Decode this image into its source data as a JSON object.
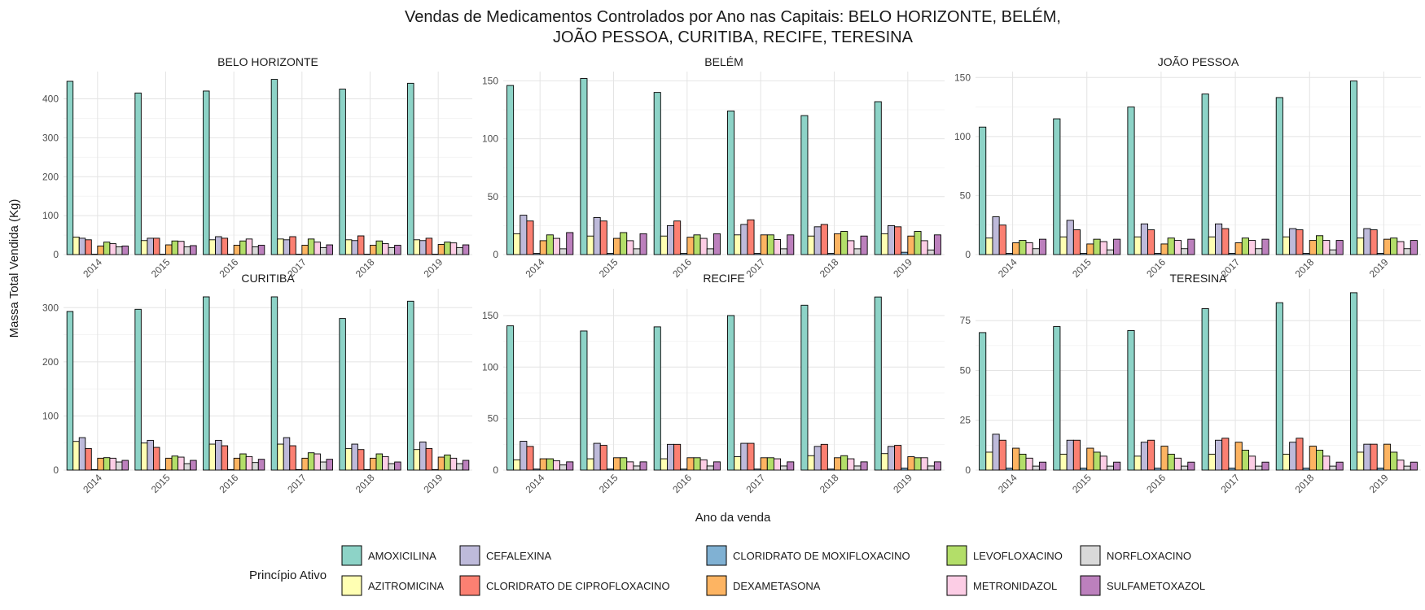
{
  "chart_data": {
    "type": "bar",
    "title": "Vendas de Medicamentos Controlados por Ano nas Capitais: BELO HORIZONTE, BELÉM, JOÃO PESSOA, CURITIBA, RECIFE, TERESINA",
    "title_lines": [
      "Vendas de Medicamentos Controlados por Ano nas Capitais: BELO HORIZONTE, BELÉM,",
      "JOÃO PESSOA, CURITIBA, RECIFE, TERESINA"
    ],
    "xlabel": "Ano da venda",
    "ylabel": "Massa Total Vendida (Kg)",
    "legend_title": "Princípio Ativo",
    "legend_position": "bottom",
    "grid": true,
    "categories": [
      "2014",
      "2015",
      "2016",
      "2017",
      "2018",
      "2019"
    ],
    "series_names": [
      "AMOXICILINA",
      "AZITROMICINA",
      "CEFALEXINA",
      "CLORIDRATO DE CIPROFLOXACINO",
      "CLORIDRATO DE MOXIFLOXACINO",
      "DEXAMETASONA",
      "LEVOFLOXACINO",
      "METRONIDAZOL",
      "NORFLOXACINO",
      "SULFAMETOXAZOL"
    ],
    "series_colors": [
      "#8DD3C7",
      "#FFFFB3",
      "#BEBADA",
      "#FB8072",
      "#80B1D3",
      "#FDB462",
      "#B3DE69",
      "#FCCDE5",
      "#D9D9D9",
      "#BC80BD"
    ],
    "panels": [
      {
        "name": "BELO HORIZONTE",
        "ylim": [
          0,
          470
        ],
        "ticks": [
          0,
          100,
          200,
          300,
          400
        ],
        "values": [
          [
            445,
            45,
            42,
            38,
            1,
            22,
            32,
            28,
            20,
            22
          ],
          [
            415,
            36,
            42,
            42,
            1,
            25,
            35,
            34,
            20,
            23
          ],
          [
            420,
            38,
            46,
            42,
            1,
            24,
            35,
            40,
            20,
            24
          ],
          [
            450,
            40,
            38,
            46,
            1,
            24,
            40,
            32,
            18,
            25
          ],
          [
            425,
            38,
            36,
            48,
            1,
            24,
            35,
            28,
            18,
            24
          ],
          [
            440,
            38,
            36,
            42,
            1,
            26,
            32,
            30,
            18,
            25
          ]
        ]
      },
      {
        "name": "BELÉM",
        "ylim": [
          0,
          158
        ],
        "ticks": [
          0,
          50,
          100,
          150
        ],
        "values": [
          [
            146,
            18,
            34,
            29,
            1,
            12,
            17,
            14,
            5,
            19
          ],
          [
            152,
            16,
            32,
            29,
            1,
            14,
            19,
            12,
            5,
            18
          ],
          [
            140,
            16,
            25,
            29,
            1,
            15,
            17,
            14,
            5,
            18
          ],
          [
            124,
            17,
            26,
            30,
            1,
            17,
            17,
            13,
            5,
            17
          ],
          [
            120,
            16,
            24,
            26,
            1,
            18,
            20,
            12,
            5,
            16
          ],
          [
            132,
            18,
            25,
            24,
            2,
            16,
            20,
            12,
            4,
            17
          ]
        ]
      },
      {
        "name": "JOÃO PESSOA",
        "ylim": [
          0,
          155
        ],
        "ticks": [
          0,
          50,
          100,
          150
        ],
        "values": [
          [
            108,
            14,
            32,
            25,
            1,
            10,
            12,
            10,
            5,
            13
          ],
          [
            115,
            15,
            29,
            21,
            1,
            9,
            13,
            11,
            4,
            13
          ],
          [
            125,
            15,
            26,
            21,
            1,
            9,
            14,
            12,
            5,
            13
          ],
          [
            136,
            15,
            26,
            22,
            1,
            10,
            14,
            12,
            5,
            13
          ],
          [
            133,
            15,
            22,
            21,
            1,
            12,
            16,
            12,
            4,
            12
          ],
          [
            147,
            14,
            22,
            21,
            1,
            13,
            14,
            11,
            5,
            12
          ]
        ]
      },
      {
        "name": "CURITIBA",
        "ylim": [
          0,
          335
        ],
        "ticks": [
          0,
          100,
          200,
          300
        ],
        "values": [
          [
            293,
            53,
            60,
            40,
            1,
            22,
            23,
            22,
            15,
            18
          ],
          [
            297,
            50,
            55,
            42,
            1,
            22,
            26,
            24,
            12,
            18
          ],
          [
            320,
            48,
            55,
            45,
            1,
            22,
            30,
            25,
            14,
            20
          ],
          [
            320,
            48,
            60,
            45,
            1,
            22,
            32,
            30,
            15,
            20
          ],
          [
            280,
            40,
            48,
            38,
            1,
            22,
            30,
            25,
            12,
            15
          ],
          [
            312,
            38,
            52,
            40,
            1,
            24,
            28,
            22,
            12,
            18
          ]
        ]
      },
      {
        "name": "RECIFE",
        "ylim": [
          0,
          176
        ],
        "ticks": [
          0,
          50,
          100,
          150
        ],
        "values": [
          [
            140,
            10,
            28,
            23,
            1,
            11,
            11,
            9,
            5,
            8
          ],
          [
            135,
            11,
            26,
            24,
            1,
            12,
            12,
            8,
            4,
            8
          ],
          [
            139,
            11,
            25,
            25,
            1,
            12,
            12,
            10,
            4,
            8
          ],
          [
            150,
            13,
            26,
            26,
            1,
            12,
            12,
            11,
            4,
            8
          ],
          [
            160,
            14,
            23,
            25,
            1,
            12,
            14,
            11,
            4,
            8
          ],
          [
            168,
            16,
            23,
            24,
            2,
            13,
            12,
            12,
            4,
            8
          ]
        ]
      },
      {
        "name": "TERESINA",
        "ylim": [
          0,
          91
        ],
        "ticks": [
          0,
          25,
          50,
          75
        ],
        "values": [
          [
            69,
            9,
            18,
            15,
            1,
            11,
            8,
            6,
            2,
            4
          ],
          [
            72,
            8,
            15,
            15,
            1,
            11,
            9,
            7,
            2,
            4
          ],
          [
            70,
            7,
            14,
            15,
            1,
            12,
            8,
            6,
            2,
            4
          ],
          [
            81,
            8,
            15,
            16,
            1,
            14,
            10,
            7,
            2,
            4
          ],
          [
            84,
            8,
            14,
            16,
            1,
            12,
            10,
            7,
            2,
            4
          ],
          [
            89,
            9,
            13,
            13,
            1,
            13,
            9,
            5,
            2,
            4
          ]
        ]
      }
    ]
  }
}
